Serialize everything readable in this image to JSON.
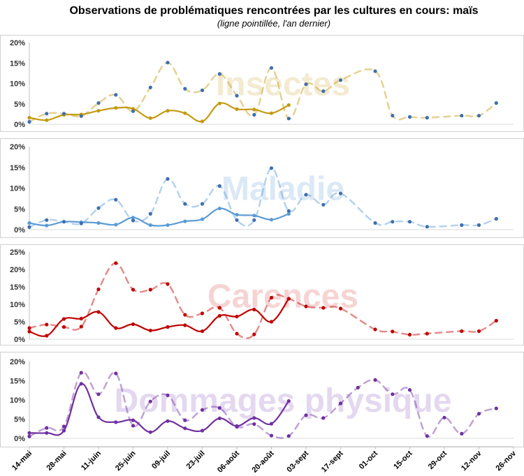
{
  "chart_data": {
    "type": "line",
    "title": "Observations de problématiques rencontrées par les cultures en cours: maïs",
    "subtitle": "(ligne pointillée, l'an dernier)",
    "x_tick_labels": [
      "14-mai",
      "28-mai",
      "11-juin",
      "25-juin",
      "09-juil",
      "23-juil",
      "06-août",
      "20-août",
      "03-sept",
      "17-sept",
      "01-oct",
      "15-oct",
      "29-oct",
      "12-nov",
      "26-nov"
    ],
    "x_range": [
      "2013-05-14",
      "2013-11-26"
    ],
    "panels": [
      {
        "label": "Insectes",
        "color": "#c49a10",
        "watermark_color": "#f3ead0",
        "y_ticks": [
          "0%",
          "5%",
          "10%",
          "15%",
          "20%"
        ],
        "ylim": [
          0,
          20
        ],
        "series": [
          {
            "style": "solid",
            "x": [
              "2013-05-14",
              "2013-05-21",
              "2013-05-28",
              "2013-06-04",
              "2013-06-11",
              "2013-06-18",
              "2013-06-25",
              "2013-07-02",
              "2013-07-09",
              "2013-07-16",
              "2013-07-23",
              "2013-07-30",
              "2013-08-06",
              "2013-08-13",
              "2013-08-20",
              "2013-08-27"
            ],
            "values": [
              1.6,
              1.0,
              2.3,
              2.4,
              3.3,
              4.0,
              3.8,
              1.5,
              3.3,
              2.7,
              0.7,
              5.1,
              3.7,
              3.6,
              2.7,
              4.7
            ]
          },
          {
            "style": "dashed",
            "x": [
              "2013-05-14",
              "2013-05-21",
              "2013-05-28",
              "2013-06-04",
              "2013-06-11",
              "2013-06-18",
              "2013-06-25",
              "2013-07-02",
              "2013-07-09",
              "2013-07-16",
              "2013-07-23",
              "2013-07-30",
              "2013-08-06",
              "2013-08-13",
              "2013-08-20",
              "2013-08-27",
              "2013-09-03",
              "2013-09-10",
              "2013-09-17",
              "2013-10-01",
              "2013-10-08",
              "2013-10-15",
              "2013-10-22",
              "2013-11-05",
              "2013-11-12",
              "2013-11-19"
            ],
            "values": [
              0.6,
              2.6,
              2.6,
              2.0,
              5.2,
              7.2,
              3.2,
              9.0,
              15.1,
              8.7,
              8.3,
              12.3,
              7.0,
              2.3,
              13.8,
              1.4,
              9.8,
              8.1,
              10.8,
              13.0,
              2.1,
              1.8,
              1.6,
              2.1,
              2.1,
              5.2
            ]
          }
        ]
      },
      {
        "label": "Maladie",
        "color": "#5b9bd5",
        "watermark_color": "#dbe8f6",
        "y_ticks": [
          "0%",
          "5%",
          "10%",
          "15%",
          "20%"
        ],
        "ylim": [
          0,
          20
        ],
        "series": [
          {
            "style": "solid",
            "x": [
              "2013-05-14",
              "2013-05-21",
              "2013-05-28",
              "2013-06-04",
              "2013-06-11",
              "2013-06-18",
              "2013-06-25",
              "2013-07-02",
              "2013-07-09",
              "2013-07-16",
              "2013-07-23",
              "2013-07-30",
              "2013-08-06",
              "2013-08-13",
              "2013-08-20",
              "2013-08-27"
            ],
            "values": [
              1.6,
              1.0,
              1.9,
              1.8,
              1.6,
              1.2,
              2.9,
              1.1,
              1.1,
              2.0,
              2.5,
              5.1,
              3.6,
              3.4,
              2.4,
              3.8
            ]
          },
          {
            "style": "dashed",
            "x": [
              "2013-05-14",
              "2013-05-21",
              "2013-05-28",
              "2013-06-04",
              "2013-06-11",
              "2013-06-18",
              "2013-06-25",
              "2013-07-02",
              "2013-07-09",
              "2013-07-16",
              "2013-07-23",
              "2013-07-30",
              "2013-08-06",
              "2013-08-13",
              "2013-08-20",
              "2013-08-27",
              "2013-09-03",
              "2013-09-10",
              "2013-09-17",
              "2013-10-01",
              "2013-10-08",
              "2013-10-15",
              "2013-10-22",
              "2013-11-05",
              "2013-11-12",
              "2013-11-19"
            ],
            "values": [
              0.6,
              2.3,
              1.9,
              1.5,
              5.2,
              7.2,
              2.2,
              3.8,
              12.2,
              6.2,
              6.2,
              10.5,
              2.3,
              2.3,
              14.8,
              4.5,
              8.4,
              6.0,
              8.7,
              1.6,
              1.9,
              1.9,
              0.7,
              1.1,
              1.1,
              2.6
            ]
          }
        ]
      },
      {
        "label": "Carences",
        "color": "#c00000",
        "watermark_color": "#f6d4d4",
        "y_ticks": [
          "0%",
          "5%",
          "10%",
          "15%",
          "20%",
          "25%"
        ],
        "ylim": [
          0,
          25
        ],
        "series": [
          {
            "style": "solid",
            "x": [
              "2013-05-14",
              "2013-05-21",
              "2013-05-28",
              "2013-06-04",
              "2013-06-11",
              "2013-06-18",
              "2013-06-25",
              "2013-07-02",
              "2013-07-09",
              "2013-07-16",
              "2013-07-23",
              "2013-07-30",
              "2013-08-06",
              "2013-08-13",
              "2013-08-20",
              "2013-08-27"
            ],
            "values": [
              2.2,
              1.0,
              5.8,
              5.9,
              7.8,
              3.2,
              4.3,
              2.5,
              3.5,
              4.0,
              2.3,
              6.7,
              6.5,
              8.5,
              5.0,
              11.6
            ]
          },
          {
            "style": "dashed",
            "x": [
              "2013-05-14",
              "2013-05-21",
              "2013-05-28",
              "2013-06-04",
              "2013-06-11",
              "2013-06-18",
              "2013-06-25",
              "2013-07-02",
              "2013-07-09",
              "2013-07-16",
              "2013-07-23",
              "2013-07-30",
              "2013-08-06",
              "2013-08-13",
              "2013-08-20",
              "2013-08-27",
              "2013-09-03",
              "2013-09-10",
              "2013-09-17",
              "2013-10-01",
              "2013-10-08",
              "2013-10-15",
              "2013-10-22",
              "2013-11-05",
              "2013-11-12",
              "2013-11-19"
            ],
            "values": [
              3.2,
              4.2,
              3.5,
              3.6,
              14.3,
              21.8,
              14.2,
              14.2,
              15.8,
              7.0,
              7.4,
              9.0,
              1.6,
              1.4,
              11.9,
              11.6,
              9.4,
              9.0,
              8.8,
              2.8,
              2.2,
              1.3,
              1.6,
              2.3,
              2.3,
              5.3
            ]
          }
        ]
      },
      {
        "label": "Dommages physique",
        "color": "#7030a0",
        "watermark_color": "#e4d8f0",
        "y_ticks": [
          "0%",
          "5%",
          "10%",
          "15%",
          "20%"
        ],
        "ylim": [
          0,
          20
        ],
        "series": [
          {
            "style": "solid",
            "x": [
              "2013-05-14",
              "2013-05-21",
              "2013-05-28",
              "2013-06-04",
              "2013-06-11",
              "2013-06-18",
              "2013-06-25",
              "2013-07-02",
              "2013-07-09",
              "2013-07-16",
              "2013-07-23",
              "2013-07-30",
              "2013-08-06",
              "2013-08-13",
              "2013-08-20",
              "2013-08-27"
            ],
            "values": [
              1.4,
              1.4,
              2.0,
              14.2,
              5.5,
              4.2,
              4.7,
              1.6,
              4.5,
              2.6,
              2.0,
              5.2,
              3.2,
              5.3,
              3.8,
              9.7
            ]
          },
          {
            "style": "dashed",
            "x": [
              "2013-05-14",
              "2013-05-21",
              "2013-05-28",
              "2013-06-04",
              "2013-06-11",
              "2013-06-18",
              "2013-06-25",
              "2013-07-02",
              "2013-07-09",
              "2013-07-16",
              "2013-07-23",
              "2013-07-30",
              "2013-08-06",
              "2013-08-13",
              "2013-08-20",
              "2013-08-27",
              "2013-09-03",
              "2013-09-10",
              "2013-09-17",
              "2013-09-24",
              "2013-10-01",
              "2013-10-08",
              "2013-10-15",
              "2013-10-22",
              "2013-10-29",
              "2013-11-05",
              "2013-11-12",
              "2013-11-19"
            ],
            "values": [
              0.5,
              2.7,
              3.1,
              17.1,
              11.5,
              16.9,
              3.3,
              9.6,
              11.2,
              4.7,
              7.4,
              7.9,
              3.0,
              3.7,
              0.7,
              0.6,
              6.0,
              5.3,
              9.1,
              13.2,
              15.2,
              11.5,
              12.6,
              0.6,
              5.4,
              1.2,
              6.4,
              7.8
            ]
          }
        ]
      }
    ],
    "grid": false,
    "legend": "none"
  }
}
